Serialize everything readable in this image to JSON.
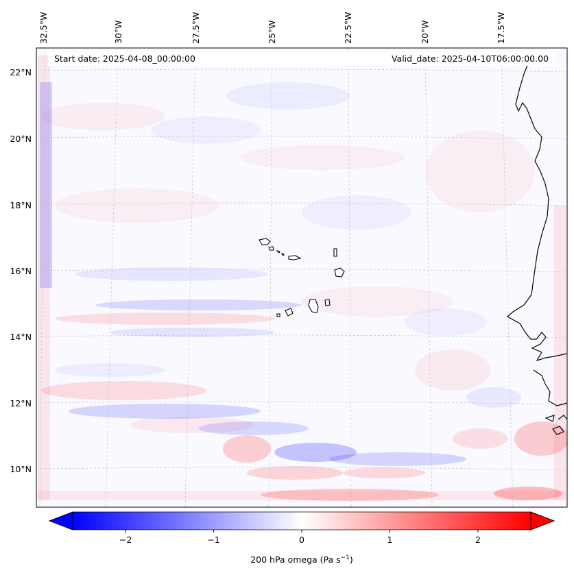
{
  "map": {
    "start_label": "Start date: 2025-04-08_00:00:00",
    "valid_label": "Valid_date: 2025-04-10T06:00:00.00",
    "lon_labels": [
      "32.5°W",
      "30°W",
      "27.5°W",
      "25°W",
      "22.5°W",
      "20°W",
      "17.5°W"
    ],
    "lat_labels": [
      "22°N",
      "20°N",
      "18°N",
      "16°N",
      "14°N",
      "12°N",
      "10°N"
    ],
    "colors": {
      "negative": "#0000ff",
      "positive": "#ff0000",
      "neutral": "#ffffff",
      "coast": "#000000",
      "grid": "#bbbbbb"
    }
  },
  "colorbar": {
    "label": "200 hPa omega (Pa s",
    "label_sup": "−1",
    "label_end": ")",
    "range": [
      -2.6,
      2.6
    ],
    "ticks": [
      {
        "value": -2,
        "label": "−2"
      },
      {
        "value": -1,
        "label": "−1"
      },
      {
        "value": 0,
        "label": "0"
      },
      {
        "value": 1,
        "label": "1"
      },
      {
        "value": 2,
        "label": "2"
      }
    ]
  }
}
